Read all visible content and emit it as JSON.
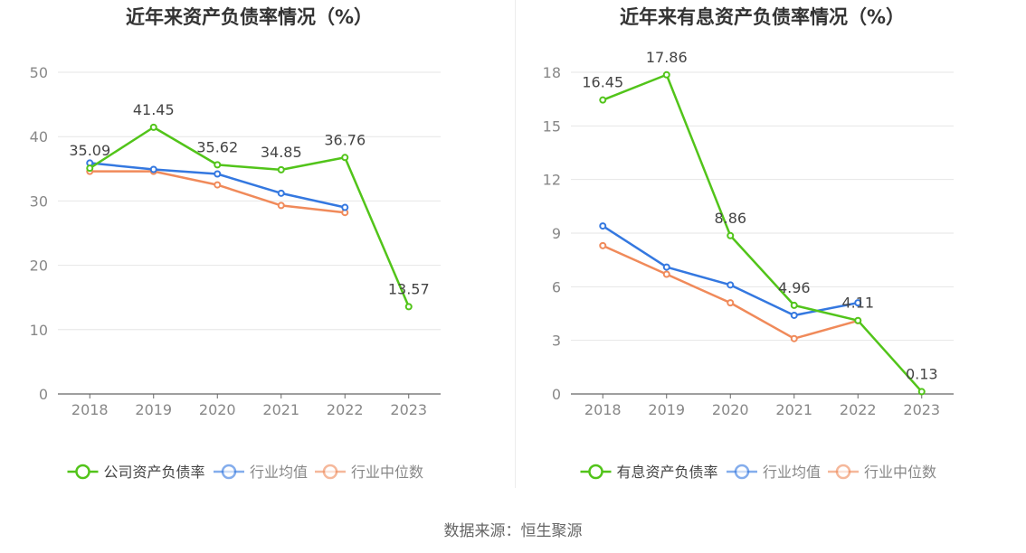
{
  "source_text": "数据来源：恒生聚源",
  "chart_data": [
    {
      "type": "line",
      "title": "近年来资产负债率情况（%）",
      "categories": [
        "2018",
        "2019",
        "2020",
        "2021",
        "2022",
        "2023"
      ],
      "ylim": [
        0,
        50
      ],
      "yticks": [
        0,
        10,
        20,
        30,
        40,
        50
      ],
      "grid": true,
      "legend_position": "bottom",
      "series": [
        {
          "name": "公司资产负债率",
          "color": "#52c41a",
          "labeled": true,
          "values": [
            35.09,
            41.45,
            35.62,
            34.85,
            36.76,
            13.57
          ]
        },
        {
          "name": "行业均值",
          "color": "#3478e0",
          "labeled": false,
          "values": [
            35.9,
            34.9,
            34.2,
            31.2,
            29.0,
            null
          ]
        },
        {
          "name": "行业中位数",
          "color": "#f08a5a",
          "labeled": false,
          "values": [
            34.6,
            34.6,
            32.5,
            29.3,
            28.2,
            null
          ]
        }
      ]
    },
    {
      "type": "line",
      "title": "近年来有息资产负债率情况（%）",
      "categories": [
        "2018",
        "2019",
        "2020",
        "2021",
        "2022",
        "2023"
      ],
      "ylim": [
        0,
        18
      ],
      "yticks": [
        0,
        3,
        6,
        9,
        12,
        15,
        18
      ],
      "grid": true,
      "legend_position": "bottom",
      "series": [
        {
          "name": "有息资产负债率",
          "color": "#52c41a",
          "labeled": true,
          "values": [
            16.45,
            17.86,
            8.86,
            4.96,
            4.11,
            0.13
          ]
        },
        {
          "name": "行业均值",
          "color": "#3478e0",
          "labeled": false,
          "values": [
            9.4,
            7.1,
            6.1,
            4.4,
            5.1,
            null
          ]
        },
        {
          "name": "行业中位数",
          "color": "#f08a5a",
          "labeled": false,
          "values": [
            8.3,
            6.7,
            5.1,
            3.1,
            4.1,
            null
          ]
        }
      ]
    }
  ]
}
